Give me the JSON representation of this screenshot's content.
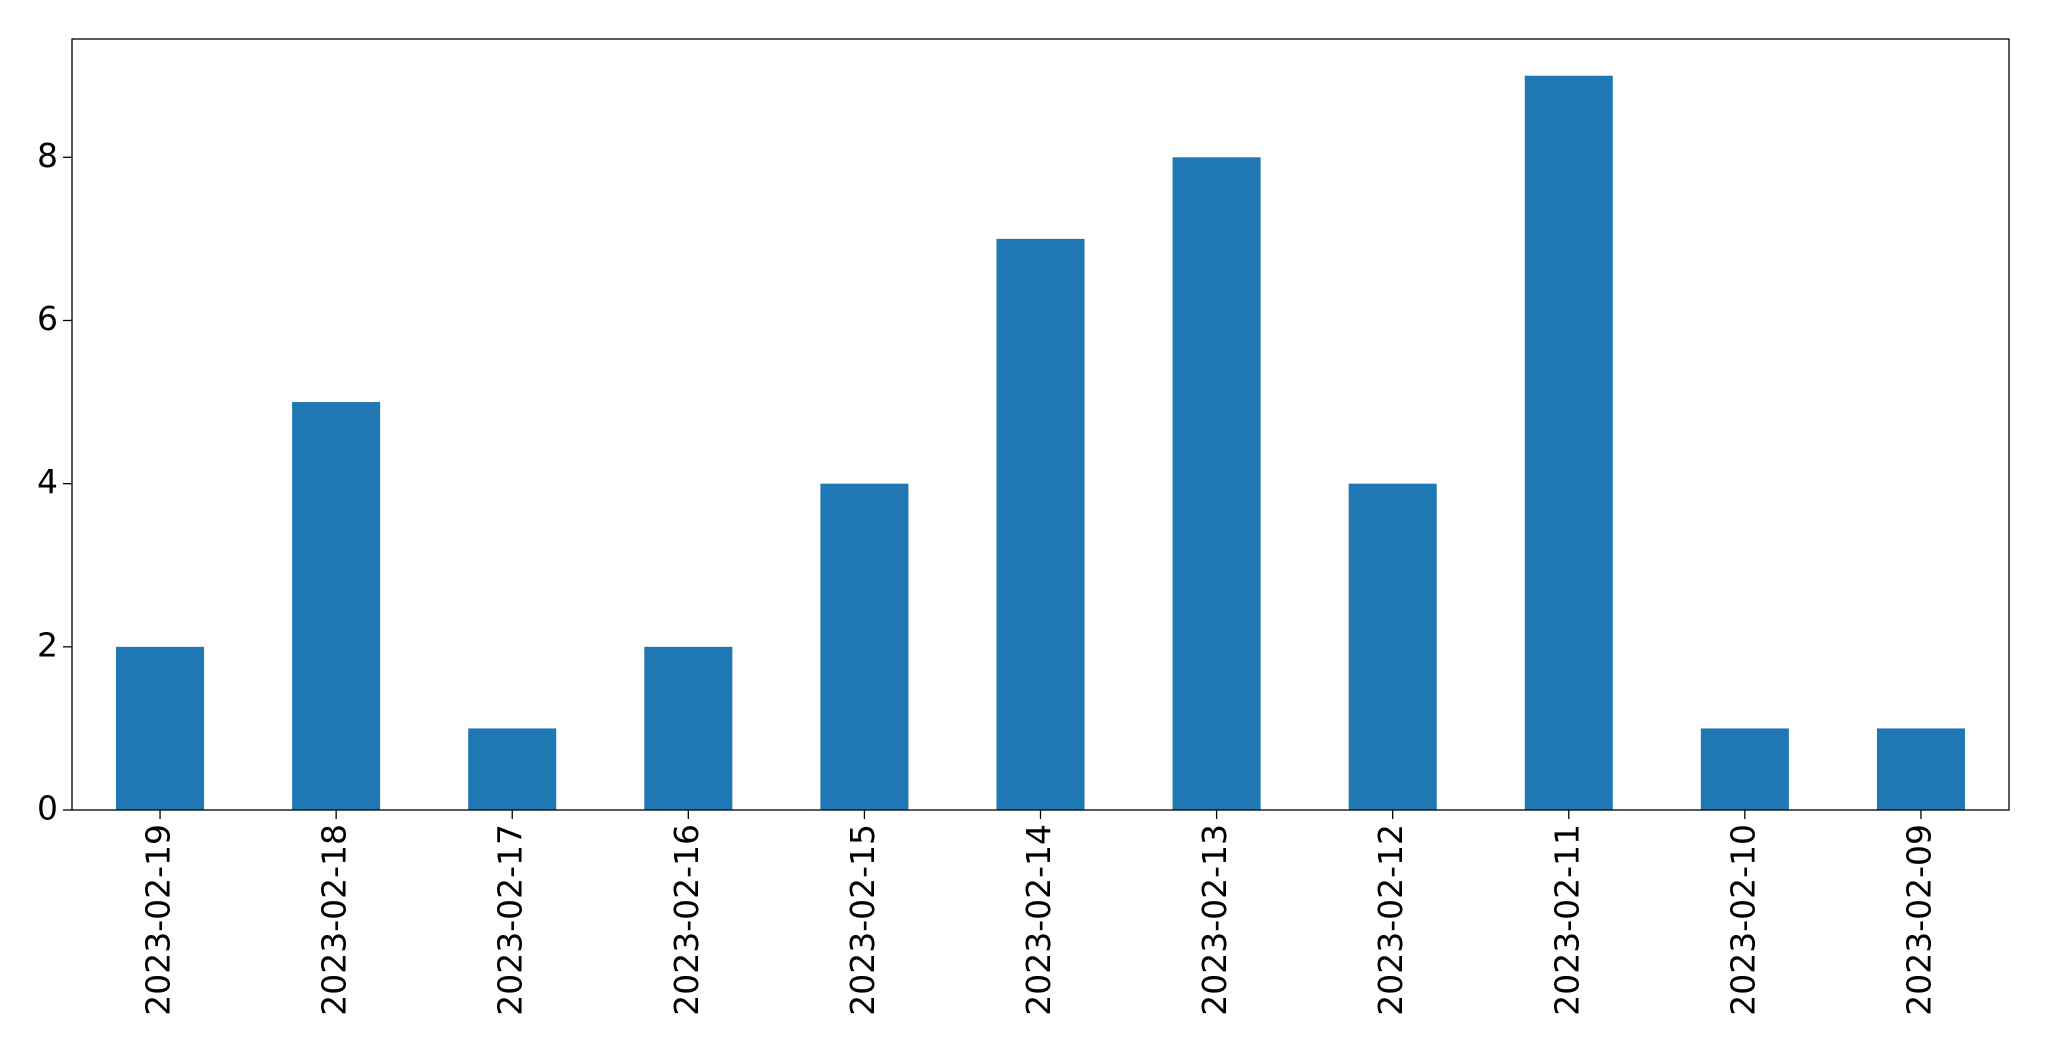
{
  "chart_data": {
    "type": "bar",
    "categories": [
      "2023-02-19",
      "2023-02-18",
      "2023-02-17",
      "2023-02-16",
      "2023-02-15",
      "2023-02-14",
      "2023-02-13",
      "2023-02-12",
      "2023-02-11",
      "2023-02-10",
      "2023-02-09"
    ],
    "values": [
      2,
      5,
      1,
      2,
      4,
      7,
      8,
      4,
      9,
      1,
      1
    ],
    "color": "#1f77b4",
    "ylim": [
      0,
      9.45
    ],
    "yticks": [
      0,
      2,
      4,
      6,
      8
    ],
    "grid": false
  }
}
